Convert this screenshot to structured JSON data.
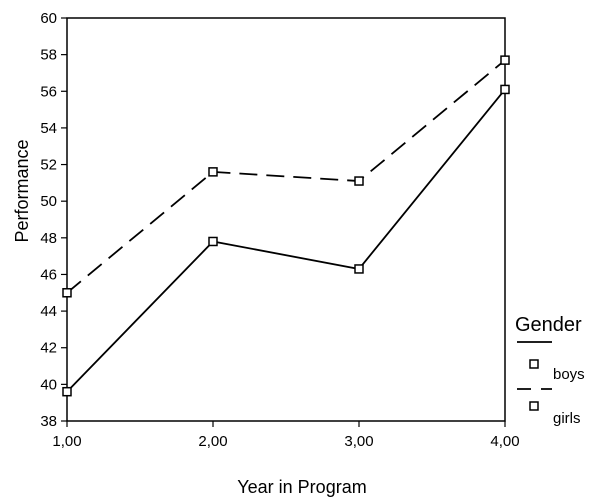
{
  "chart_data": {
    "type": "line",
    "title": "",
    "xlabel": "Year in Program",
    "ylabel": "Performance",
    "x": [
      1,
      2,
      3,
      4
    ],
    "x_tick_labels": [
      "1,00",
      "2,00",
      "3,00",
      "4,00"
    ],
    "xlim": [
      1,
      4
    ],
    "ylim": [
      38,
      60
    ],
    "y_ticks": [
      38,
      40,
      42,
      44,
      46,
      48,
      50,
      52,
      54,
      56,
      58,
      60
    ],
    "grid": false,
    "legend": {
      "title": "Gender",
      "placement": "right"
    },
    "series": [
      {
        "name": "boys",
        "line_style": "solid",
        "marker": "square",
        "values": [
          39.6,
          47.8,
          46.3,
          56.1
        ]
      },
      {
        "name": "girls",
        "line_style": "dashed",
        "marker": "square",
        "values": [
          45.0,
          51.6,
          51.1,
          57.7
        ]
      }
    ]
  }
}
